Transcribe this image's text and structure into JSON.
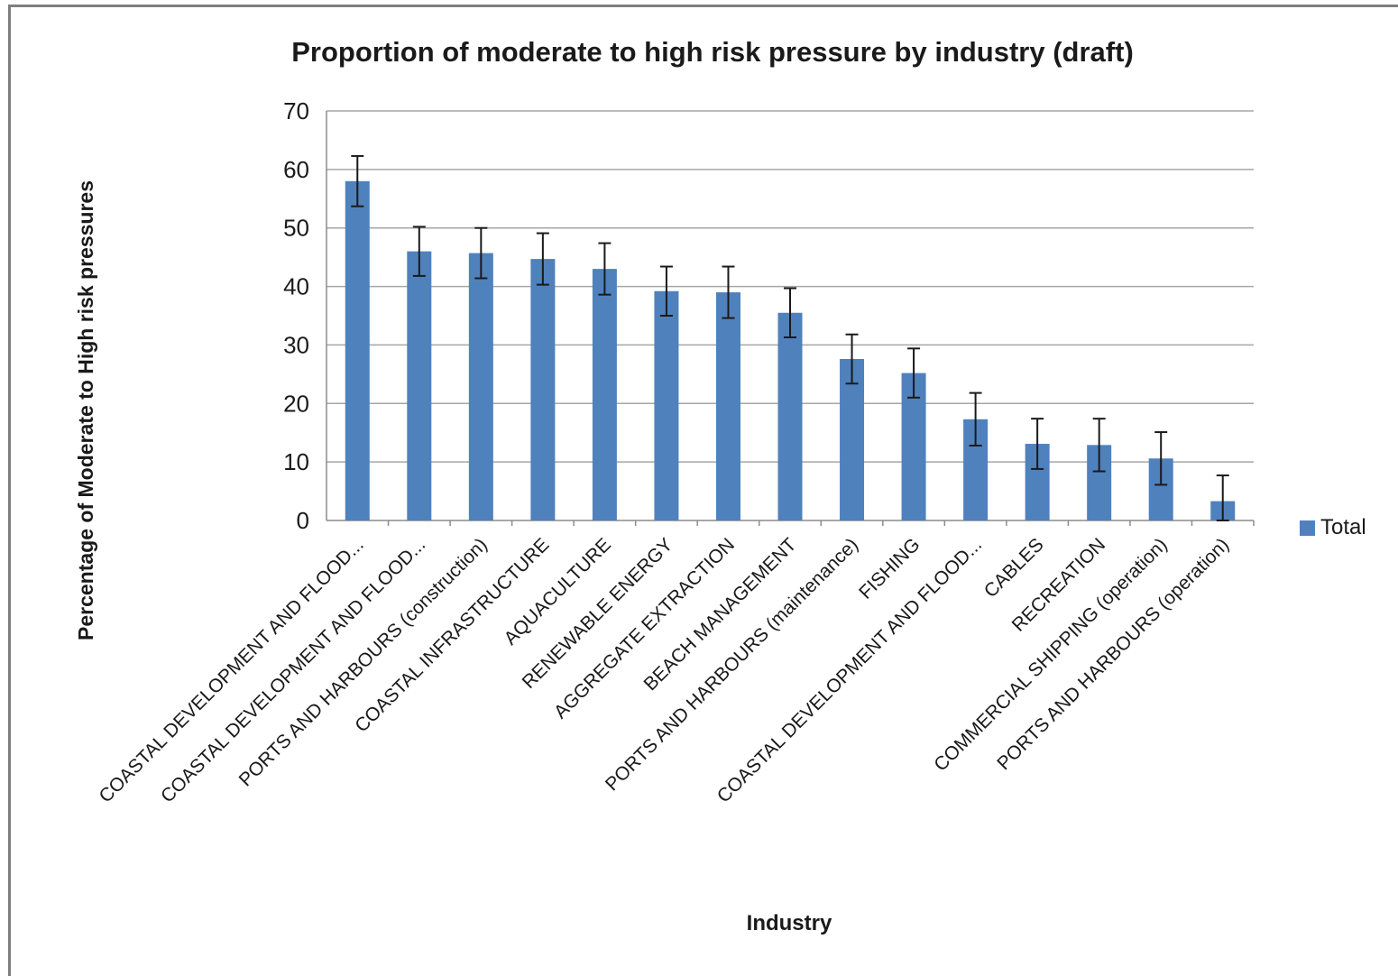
{
  "chart_data": {
    "type": "bar",
    "title": "Proportion of moderate to high risk pressure by industry (draft)",
    "xlabel": "Industry",
    "ylabel": "Percentage of Moderate to High risk pressures",
    "ylim": [
      0,
      70
    ],
    "yticks": [
      0,
      10,
      20,
      30,
      40,
      50,
      60,
      70
    ],
    "grid": true,
    "legend_position": "right",
    "categories": [
      "COASTAL DEVELOPMENT AND FLOOD...",
      "COASTAL DEVELOPMENT AND FLOOD...",
      "PORTS AND HARBOURS (construction)",
      "COASTAL INFRASTRUCTURE",
      "AQUACULTURE",
      "RENEWABLE ENERGY",
      "AGGREGATE EXTRACTION",
      "BEACH MANAGEMENT",
      "PORTS AND HARBOURS (maintenance)",
      "FISHING",
      "COASTAL DEVELOPMENT AND FLOOD...",
      "CABLES",
      "RECREATION",
      "COMMERCIAL SHIPPING (operation)",
      "PORTS AND HARBOURS (operation)"
    ],
    "series": [
      {
        "name": "Total",
        "color": "#4f81bd",
        "values": [
          58,
          46,
          45.7,
          44.7,
          43,
          39.2,
          39,
          35.5,
          27.6,
          25.2,
          17.3,
          13.1,
          12.9,
          10.6,
          3.3
        ],
        "error": [
          4.3,
          4.2,
          4.3,
          4.4,
          4.4,
          4.2,
          4.4,
          4.2,
          4.2,
          4.2,
          4.5,
          4.3,
          4.5,
          4.5,
          4.4
        ]
      }
    ]
  }
}
